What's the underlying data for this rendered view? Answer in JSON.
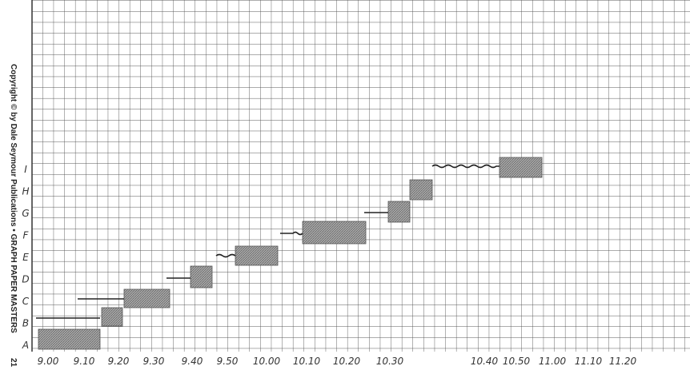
{
  "side_text": "Copyright © by Dale Seymour Publications  •  GRAPH PAPER MASTERS",
  "page_number": "21",
  "x_labels": [
    "9.00",
    "9.10",
    "9.20",
    "9.30",
    "9.40",
    "9.50",
    "10.00",
    "10.10",
    "10.20",
    "10.30",
    "10.40",
    "10.50",
    "11.00",
    "11.10",
    "11.20"
  ],
  "y_labels": [
    "A",
    "B",
    "C",
    "D",
    "E",
    "F",
    "G",
    "H",
    "I"
  ]
}
